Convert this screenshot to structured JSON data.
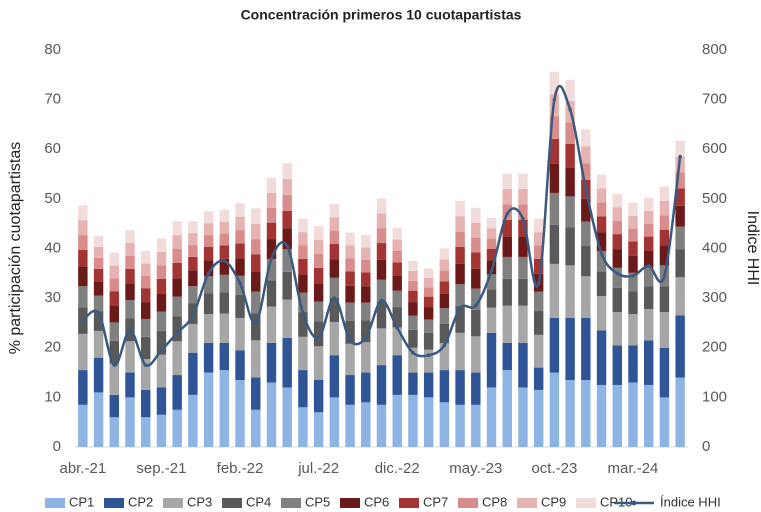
{
  "chart_data": {
    "type": "bar",
    "stacked": true,
    "title": "Concentración primeros 10 cuotapartistas",
    "y_label": "% participación cuotapartistas",
    "y2_label": "Indice HHI",
    "categories": [
      "abr.-21",
      null,
      null,
      null,
      null,
      "sep.-21",
      null,
      null,
      null,
      null,
      "feb.-22",
      null,
      null,
      null,
      null,
      "jul.-22",
      null,
      null,
      null,
      null,
      "dic.-22",
      null,
      null,
      null,
      null,
      "may.-23",
      null,
      null,
      null,
      null,
      "oct.-23",
      null,
      null,
      null,
      null,
      "mar.-24",
      null,
      null,
      null
    ],
    "ylim": [
      0,
      80
    ],
    "yticks": [
      0,
      10,
      20,
      30,
      40,
      50,
      60,
      70,
      80
    ],
    "y2lim": [
      0,
      800
    ],
    "y2ticks": [
      0,
      100,
      200,
      300,
      400,
      500,
      600,
      700,
      800
    ],
    "series": [
      {
        "name": "CP1",
        "color": "#8db4e2",
        "values": [
          8.5,
          11,
          6,
          10,
          6,
          6.5,
          7.5,
          10.5,
          15,
          15.5,
          13.5,
          7.5,
          13,
          12,
          8,
          7,
          10,
          8.5,
          9,
          8.5,
          10.5,
          10.5,
          10,
          9,
          8.5,
          8.5,
          12,
          15.5,
          12,
          11.5,
          15,
          13.5,
          13.5,
          12.5,
          12.5,
          13,
          12.5,
          10,
          14
        ]
      },
      {
        "name": "CP2",
        "color": "#2f5597",
        "values": [
          7,
          7,
          4.5,
          5,
          5.5,
          5.5,
          7,
          8.5,
          6,
          5.5,
          6,
          6.5,
          8,
          10,
          7.5,
          6.5,
          8.5,
          6,
          6,
          8,
          8,
          4.5,
          5,
          6.5,
          7,
          6.5,
          11,
          5.5,
          9,
          4.5,
          11,
          12.5,
          12.5,
          11,
          8,
          7.5,
          9,
          10,
          12.5
        ]
      },
      {
        "name": "CP3",
        "color": "#a6a6a6",
        "values": [
          7.3,
          5.4,
          6.3,
          6.3,
          6.2,
          6.6,
          6.8,
          5.8,
          5.8,
          5.9,
          6.5,
          7.5,
          7.3,
          7.7,
          6.7,
          6.8,
          6.7,
          6.3,
          6.1,
          7.4,
          5.6,
          5,
          4.6,
          5.4,
          7.5,
          7.3,
          5.1,
          7.5,
          7.5,
          6.6,
          10.9,
          10.6,
          8.4,
          6.9,
          6.7,
          6.3,
          6.3,
          7.2,
          7.7
        ]
      },
      {
        "name": "CP4",
        "color": "#595959",
        "values": [
          5.3,
          3.9,
          4.6,
          4.6,
          4.5,
          4.8,
          5,
          4.2,
          4.2,
          4.3,
          4.7,
          5.4,
          5.3,
          5.6,
          4.9,
          5,
          4.9,
          4.6,
          4.4,
          5.4,
          4.1,
          3.6,
          3.4,
          3.9,
          5.4,
          5.3,
          3.7,
          5.4,
          5.4,
          4.8,
          7.9,
          7.7,
          6.1,
          5,
          4.9,
          4.6,
          4.6,
          5.2,
          5.6
        ]
      },
      {
        "name": "CP5",
        "color": "#808080",
        "values": [
          4.3,
          3.2,
          3.7,
          3.7,
          3.6,
          3.9,
          4,
          3.4,
          3.4,
          3.5,
          3.8,
          4.4,
          4.3,
          4.6,
          4,
          4,
          4,
          3.7,
          3.6,
          4.4,
          3.3,
          2.9,
          2.7,
          3.2,
          4.4,
          4.3,
          3,
          4.4,
          4.4,
          3.9,
          6.4,
          6.2,
          4.9,
          4.1,
          4,
          3.7,
          3.7,
          4.2,
          4.6
        ]
      },
      {
        "name": "CP6",
        "color": "#6b1a1a",
        "values": [
          4,
          2.9,
          3.4,
          3.4,
          3.4,
          3.6,
          3.7,
          3.2,
          3.2,
          3.2,
          3.5,
          4.1,
          4,
          4.2,
          3.7,
          3.7,
          3.7,
          3.4,
          3.3,
          4,
          3.1,
          2.7,
          2.5,
          2.9,
          4.1,
          4,
          2.8,
          4.1,
          4.1,
          3.6,
          5.9,
          5.8,
          4.6,
          3.8,
          3.7,
          3.4,
          3.4,
          3.9,
          4.2
        ]
      },
      {
        "name": "CP7",
        "color": "#a33434",
        "values": [
          3.3,
          2.5,
          2.9,
          2.9,
          2.8,
          3,
          3.1,
          2.7,
          2.7,
          2.7,
          3,
          3.4,
          3.3,
          3.5,
          3.1,
          3.1,
          3.1,
          2.9,
          2.8,
          3.4,
          2.6,
          2.3,
          2.1,
          2.5,
          3.4,
          3.3,
          2.3,
          3.4,
          3.4,
          3,
          5,
          4.8,
          3.8,
          3.2,
          3.1,
          2.9,
          2.9,
          3.3,
          3.5
        ]
      },
      {
        "name": "CP8",
        "color": "#d98c8c",
        "values": [
          3,
          2.2,
          2.6,
          2.6,
          2.5,
          2.7,
          2.8,
          2.4,
          2.4,
          2.4,
          2.7,
          3.1,
          3,
          3.2,
          2.7,
          2.8,
          2.7,
          2.6,
          2.5,
          3,
          2.3,
          2,
          1.9,
          2.2,
          3.1,
          3,
          2.1,
          3.1,
          3.1,
          2.7,
          4.5,
          4.3,
          3.4,
          2.8,
          2.7,
          2.6,
          2.6,
          2.9,
          3.2
        ]
      },
      {
        "name": "CP9",
        "color": "#e6b3b3",
        "values": [
          3,
          2.2,
          2.6,
          2.6,
          2.5,
          2.7,
          2.8,
          2.4,
          2.4,
          2.4,
          2.7,
          3.1,
          3,
          3.2,
          2.7,
          2.8,
          2.7,
          2.6,
          2.5,
          3,
          2.3,
          2,
          1.9,
          2.2,
          3.1,
          3,
          2.1,
          3.1,
          3.1,
          2.7,
          4.5,
          4.3,
          3.4,
          2.8,
          2.7,
          2.6,
          2.6,
          2.9,
          3.2
        ]
      },
      {
        "name": "CP10",
        "color": "#f2dcdb",
        "values": [
          3,
          2.2,
          2.6,
          2.6,
          2.5,
          2.7,
          2.8,
          2.4,
          2.4,
          2.4,
          2.7,
          3.1,
          3,
          3.2,
          2.7,
          2.8,
          2.7,
          2.6,
          2.5,
          3,
          2.3,
          2,
          1.9,
          2.2,
          3.1,
          3,
          2.1,
          3.1,
          3.1,
          2.7,
          4.5,
          4.3,
          3.4,
          2.8,
          2.7,
          2.6,
          2.6,
          2.9,
          3.2
        ]
      },
      {
        "name": "Índice HHI",
        "color": "#3b5a80",
        "axis": "y2",
        "values": [
          255,
          270,
          165,
          235,
          165,
          195,
          230,
          265,
          350,
          375,
          330,
          250,
          380,
          405,
          270,
          220,
          300,
          215,
          220,
          295,
          240,
          190,
          185,
          205,
          280,
          285,
          355,
          470,
          460,
          330,
          700,
          680,
          520,
          390,
          350,
          345,
          365,
          345,
          585
        ]
      }
    ]
  }
}
